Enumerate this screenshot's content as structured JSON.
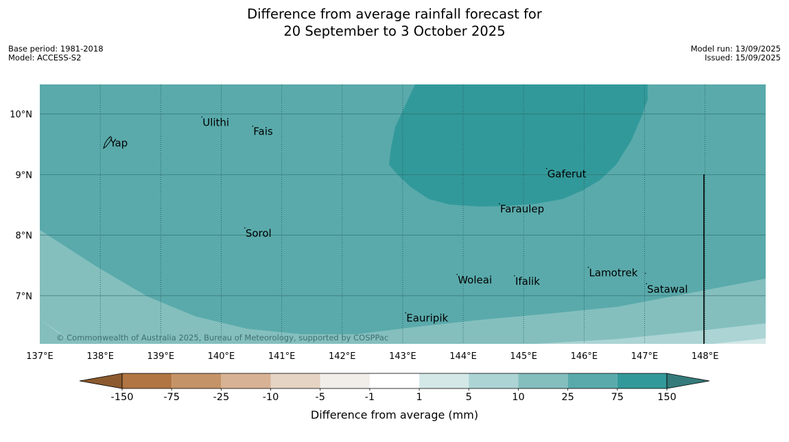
{
  "title": {
    "line1": "Difference from average rainfall forecast for",
    "line2": "20 September to 3 October 2025"
  },
  "meta": {
    "base_period": "Base period: 1981-2018",
    "model": "Model: ACCESS-S2",
    "model_run": "Model run: 13/09/2025",
    "issued": "Issued: 15/09/2025"
  },
  "map": {
    "lon_labels": [
      "137°E",
      "138°E",
      "139°E",
      "140°E",
      "141°E",
      "142°E",
      "143°E",
      "144°E",
      "145°E",
      "146°E",
      "147°E",
      "148°E"
    ],
    "lat_labels": [
      "10°N",
      "9°N",
      "8°N",
      "7°N"
    ],
    "places": [
      {
        "name": "Ulithi",
        "lon": 139.68,
        "lat": 9.87
      },
      {
        "name": "Fais",
        "lon": 140.52,
        "lat": 9.72
      },
      {
        "name": "Yap",
        "lon": 138.15,
        "lat": 9.53
      },
      {
        "name": "Gaferut",
        "lon": 145.38,
        "lat": 9.02
      },
      {
        "name": "Faraulep",
        "lon": 144.6,
        "lat": 8.44
      },
      {
        "name": "Sorol",
        "lon": 140.39,
        "lat": 8.04
      },
      {
        "name": "Lamotrek",
        "lon": 146.07,
        "lat": 7.39
      },
      {
        "name": "Woleai",
        "lon": 143.9,
        "lat": 7.27
      },
      {
        "name": "Ifalik",
        "lon": 144.85,
        "lat": 7.25
      },
      {
        "name": "Satawal",
        "lon": 147.03,
        "lat": 7.12
      },
      {
        "name": "Eauripik",
        "lon": 143.05,
        "lat": 6.64
      }
    ],
    "copyright": "© Commonwealth of Australia 2025, Bureau of Meteorology, supported by COSPPac"
  },
  "colorbar": {
    "ticks": [
      "-150",
      "-75",
      "-25",
      "-10",
      "-5",
      "-1",
      "1",
      "5",
      "10",
      "25",
      "75",
      "150"
    ],
    "colors": [
      "#8c5a2e",
      "#b07542",
      "#c49367",
      "#d7b295",
      "#e5d3c3",
      "#f1eeea",
      "#ffffff",
      "#d4e8e8",
      "#acd4d4",
      "#84bfbe",
      "#5aaaab",
      "#32999a",
      "#357b7b"
    ],
    "label": "Difference from average (mm)"
  }
}
